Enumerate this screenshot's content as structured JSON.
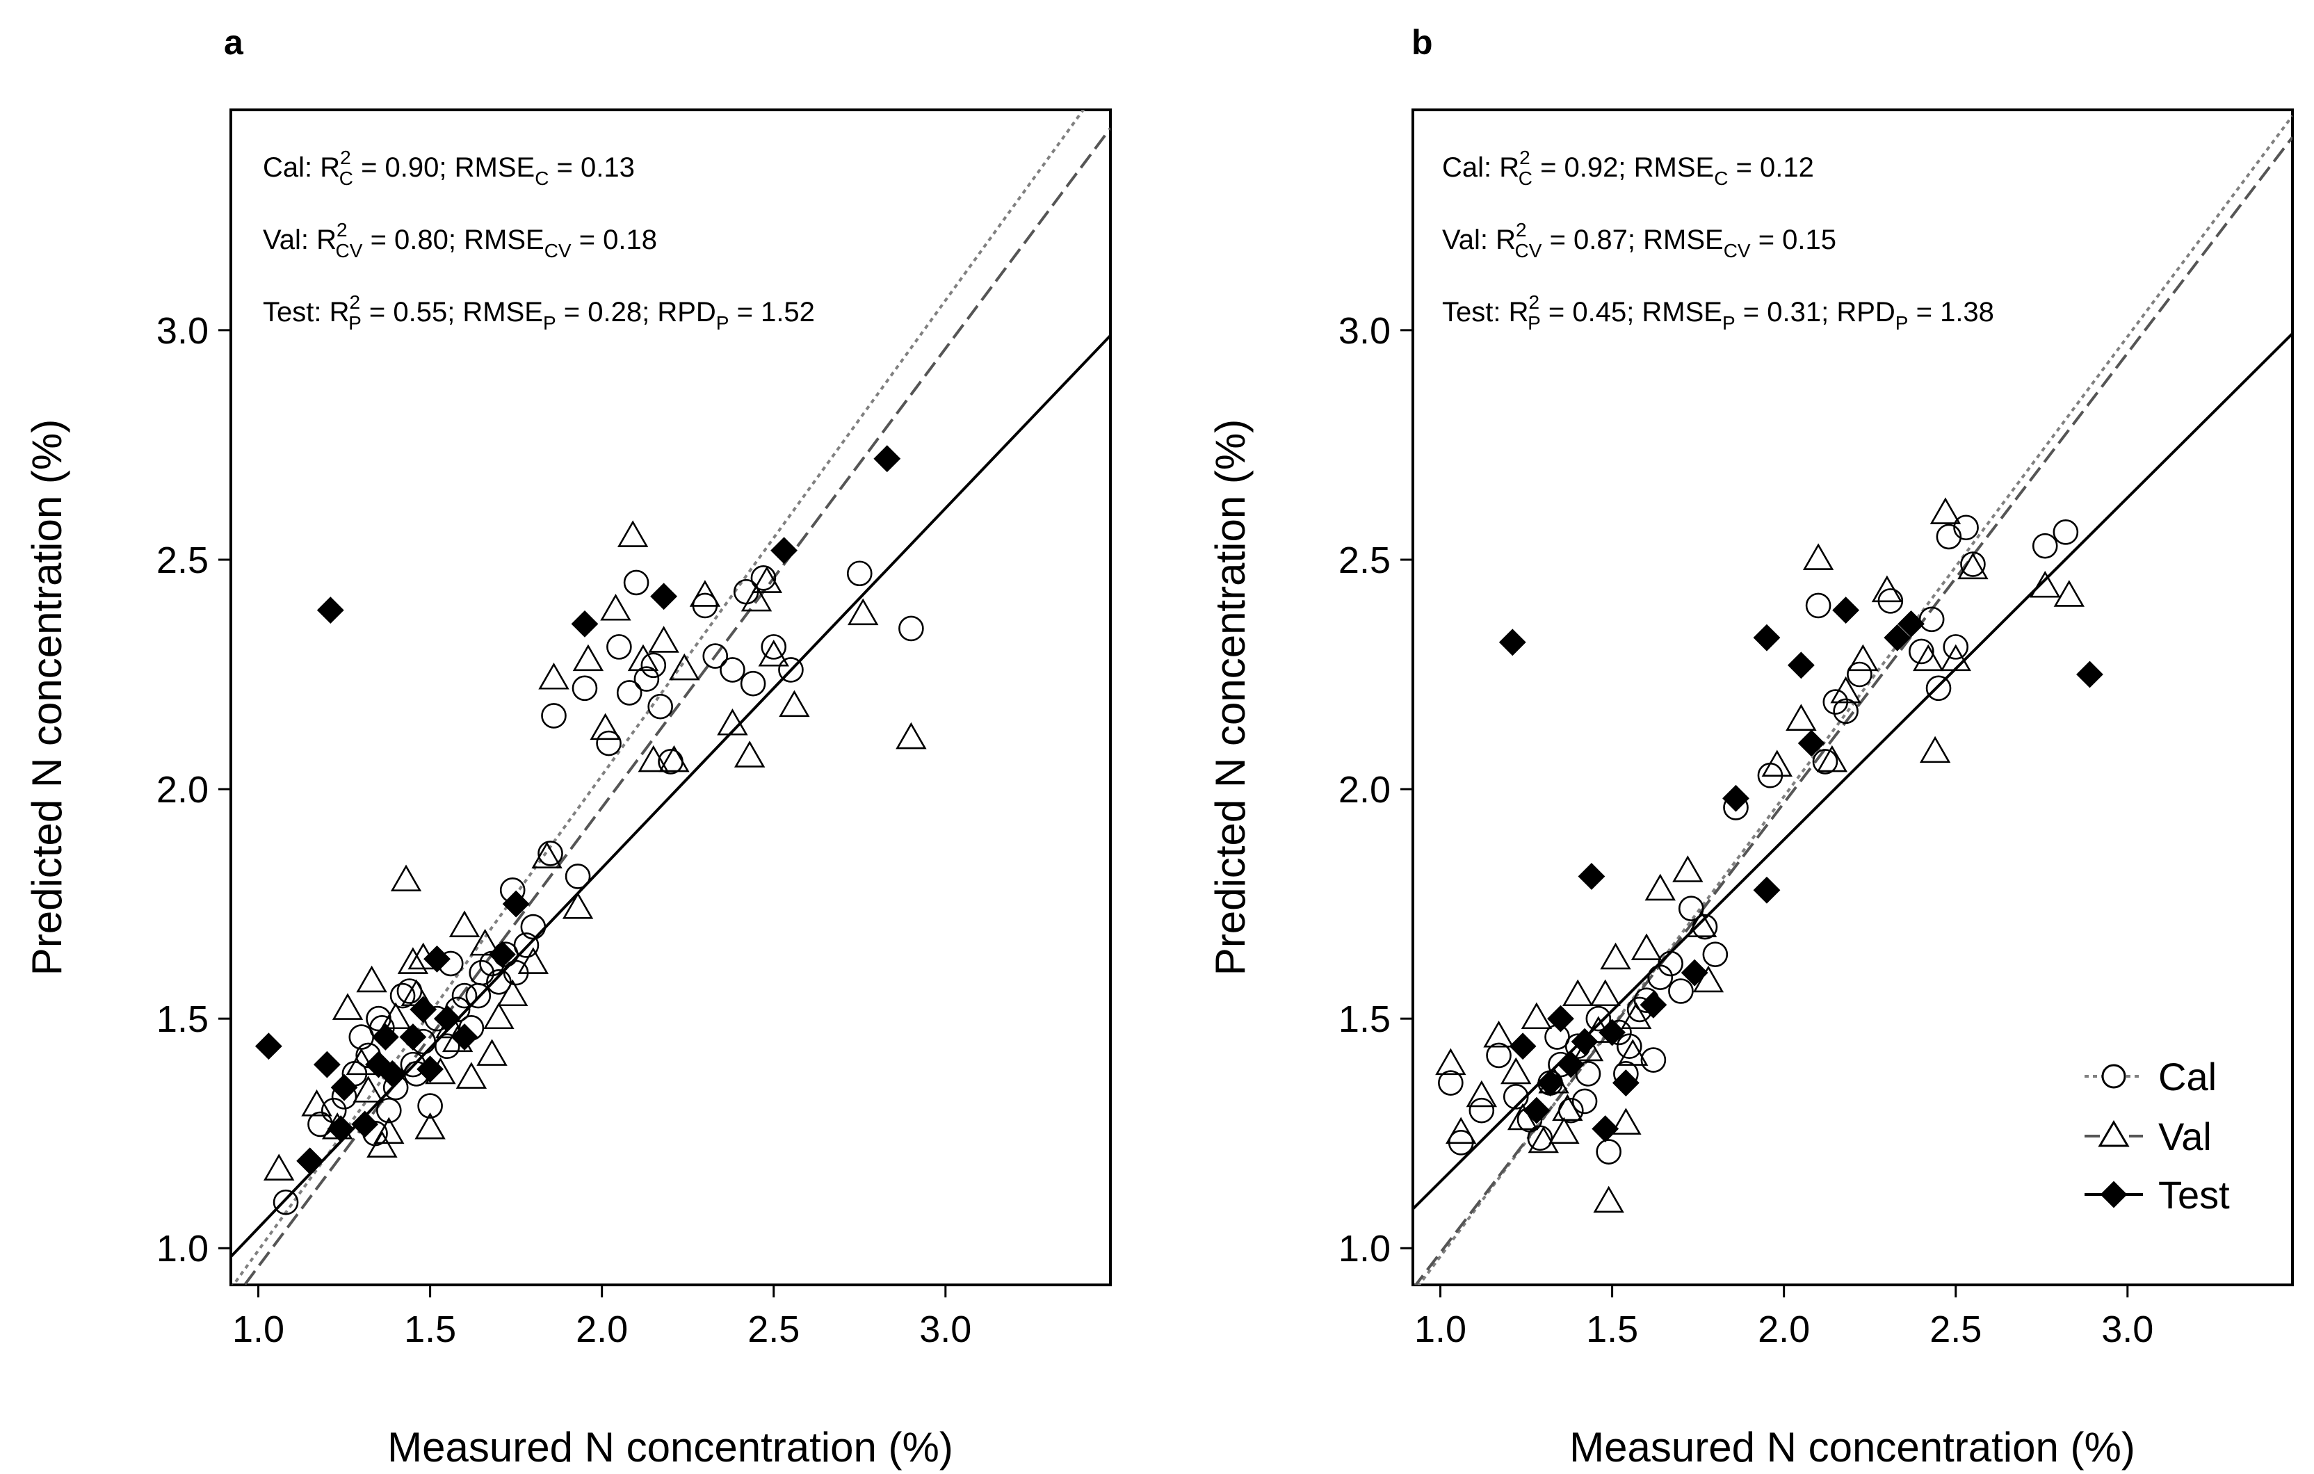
{
  "chart_data": [
    {
      "panel": "a",
      "type": "scatter",
      "xlabel": "Measured N concentration (%)",
      "ylabel": "Predicted N concentration (%)",
      "xlim": [
        0.92,
        3.48
      ],
      "ylim": [
        0.92,
        3.48
      ],
      "xticks": [
        "1.0",
        "1.5",
        "2.0",
        "2.5",
        "3.0"
      ],
      "yticks": [
        "1.0",
        "1.5",
        "2.0",
        "2.5",
        "3.0"
      ],
      "stats": {
        "cal": {
          "prefix": "Cal: R",
          "sup": "2",
          "sub": "C",
          "mid": " = 0.90; RMSE",
          "sub2": "C",
          "rest": " = 0.13"
        },
        "val": {
          "prefix": "Val: R",
          "sup": "2",
          "sub": "CV",
          "mid": " = 0.80; RMSE",
          "sub2": "CV",
          "rest": " = 0.18"
        },
        "test": {
          "prefix": "Test: R",
          "sup": "2",
          "sub": "P",
          "mid": " = 0.55; RMSE",
          "sub2": "P",
          "rest": " = 0.28; RPD",
          "sub3": "P",
          "rest2": " = 1.52"
        }
      },
      "fit_lines": {
        "cal": {
          "slope": 1.035,
          "intercept": -0.04
        },
        "val": {
          "slope": 1.0,
          "intercept": -0.04
        },
        "test": {
          "slope": 0.784,
          "intercept": 0.26
        }
      },
      "series": [
        {
          "name": "Cal",
          "marker": "circle",
          "points": [
            [
              1.08,
              1.1
            ],
            [
              1.18,
              1.27
            ],
            [
              1.22,
              1.3
            ],
            [
              1.25,
              1.33
            ],
            [
              1.28,
              1.38
            ],
            [
              1.3,
              1.46
            ],
            [
              1.32,
              1.42
            ],
            [
              1.35,
              1.5
            ],
            [
              1.38,
              1.3
            ],
            [
              1.4,
              1.35
            ],
            [
              1.42,
              1.55
            ],
            [
              1.45,
              1.4
            ],
            [
              1.48,
              1.45
            ],
            [
              1.5,
              1.31
            ],
            [
              1.52,
              1.5
            ],
            [
              1.55,
              1.44
            ],
            [
              1.58,
              1.52
            ],
            [
              1.6,
              1.55
            ],
            [
              1.62,
              1.48
            ],
            [
              1.65,
              1.6
            ],
            [
              1.68,
              1.62
            ],
            [
              1.7,
              1.58
            ],
            [
              1.72,
              1.64
            ],
            [
              1.75,
              1.6
            ],
            [
              1.78,
              1.66
            ],
            [
              1.8,
              1.7
            ],
            [
              1.74,
              1.78
            ],
            [
              1.85,
              1.86
            ],
            [
              1.93,
              1.81
            ],
            [
              1.86,
              2.16
            ],
            [
              1.95,
              2.22
            ],
            [
              2.02,
              2.1
            ],
            [
              2.05,
              2.31
            ],
            [
              2.08,
              2.21
            ],
            [
              2.1,
              2.45
            ],
            [
              2.13,
              2.24
            ],
            [
              2.15,
              2.27
            ],
            [
              2.17,
              2.18
            ],
            [
              2.2,
              2.06
            ],
            [
              2.3,
              2.4
            ],
            [
              2.33,
              2.29
            ],
            [
              2.38,
              2.26
            ],
            [
              2.42,
              2.43
            ],
            [
              2.44,
              2.23
            ],
            [
              2.47,
              2.46
            ],
            [
              2.5,
              2.31
            ],
            [
              2.55,
              2.26
            ],
            [
              2.75,
              2.47
            ],
            [
              2.9,
              2.35
            ],
            [
              1.36,
              1.48
            ],
            [
              1.44,
              1.56
            ],
            [
              1.46,
              1.38
            ],
            [
              1.56,
              1.62
            ],
            [
              1.64,
              1.55
            ],
            [
              1.34,
              1.25
            ]
          ]
        },
        {
          "name": "Val",
          "marker": "triangle",
          "points": [
            [
              1.06,
              1.17
            ],
            [
              1.17,
              1.31
            ],
            [
              1.23,
              1.26
            ],
            [
              1.26,
              1.52
            ],
            [
              1.3,
              1.4
            ],
            [
              1.33,
              1.58
            ],
            [
              1.36,
              1.22
            ],
            [
              1.38,
              1.25
            ],
            [
              1.4,
              1.5
            ],
            [
              1.43,
              1.8
            ],
            [
              1.45,
              1.62
            ],
            [
              1.48,
              1.63
            ],
            [
              1.5,
              1.26
            ],
            [
              1.53,
              1.38
            ],
            [
              1.56,
              1.48
            ],
            [
              1.6,
              1.7
            ],
            [
              1.62,
              1.37
            ],
            [
              1.66,
              1.66
            ],
            [
              1.7,
              1.5
            ],
            [
              1.74,
              1.55
            ],
            [
              1.8,
              1.62
            ],
            [
              1.84,
              1.85
            ],
            [
              1.86,
              2.24
            ],
            [
              1.93,
              1.74
            ],
            [
              1.96,
              2.28
            ],
            [
              2.01,
              2.13
            ],
            [
              2.04,
              2.39
            ],
            [
              2.09,
              2.55
            ],
            [
              2.12,
              2.28
            ],
            [
              2.15,
              2.06
            ],
            [
              2.18,
              2.32
            ],
            [
              2.21,
              2.06
            ],
            [
              2.24,
              2.26
            ],
            [
              2.3,
              2.42
            ],
            [
              2.38,
              2.14
            ],
            [
              2.43,
              2.07
            ],
            [
              2.45,
              2.41
            ],
            [
              2.48,
              2.45
            ],
            [
              2.5,
              2.29
            ],
            [
              2.56,
              2.18
            ],
            [
              2.76,
              2.38
            ],
            [
              2.9,
              2.11
            ],
            [
              1.32,
              1.34
            ],
            [
              1.46,
              1.55
            ],
            [
              1.58,
              1.45
            ],
            [
              1.68,
              1.42
            ]
          ]
        },
        {
          "name": "Test",
          "marker": "diamond",
          "points": [
            [
              1.03,
              1.44
            ],
            [
              1.15,
              1.19
            ],
            [
              1.2,
              1.4
            ],
            [
              1.21,
              2.39
            ],
            [
              1.24,
              1.26
            ],
            [
              1.25,
              1.35
            ],
            [
              1.31,
              1.27
            ],
            [
              1.35,
              1.4
            ],
            [
              1.37,
              1.46
            ],
            [
              1.39,
              1.38
            ],
            [
              1.45,
              1.46
            ],
            [
              1.48,
              1.52
            ],
            [
              1.5,
              1.39
            ],
            [
              1.52,
              1.63
            ],
            [
              1.55,
              1.5
            ],
            [
              1.6,
              1.46
            ],
            [
              1.71,
              1.64
            ],
            [
              1.75,
              1.75
            ],
            [
              1.95,
              2.36
            ],
            [
              2.18,
              2.42
            ],
            [
              2.53,
              2.52
            ],
            [
              2.83,
              2.72
            ]
          ]
        }
      ]
    },
    {
      "panel": "b",
      "type": "scatter",
      "xlabel": "Measured N concentration (%)",
      "ylabel": "Predicted N concentration (%)",
      "xlim": [
        0.92,
        3.48
      ],
      "ylim": [
        0.92,
        3.48
      ],
      "xticks": [
        "1.0",
        "1.5",
        "2.0",
        "2.5",
        "3.0"
      ],
      "yticks": [
        "1.0",
        "1.5",
        "2.0",
        "2.5",
        "3.0"
      ],
      "stats": {
        "cal": {
          "prefix": "Cal: R",
          "sup": "2",
          "sub": "C",
          "mid": " = 0.92; RMSE",
          "sub2": "C",
          "rest": " = 0.12"
        },
        "val": {
          "prefix": "Val: R",
          "sup": "2",
          "sub": "CV",
          "mid": " = 0.87; RMSE",
          "sub2": "CV",
          "rest": " = 0.15"
        },
        "test": {
          "prefix": "Test: R",
          "sup": "2",
          "sub": "P",
          "mid": " = 0.45; RMSE",
          "sub2": "P",
          "rest": " = 0.31; RPD",
          "sub3": "P",
          "rest2": " = 1.38"
        }
      },
      "fit_lines": {
        "cal": {
          "slope": 1.002,
          "intercept": -0.02
        },
        "val": {
          "slope": 0.98,
          "intercept": 0.01
        },
        "test": {
          "slope": 0.745,
          "intercept": 0.4
        }
      },
      "series": [
        {
          "name": "Cal",
          "marker": "circle",
          "points": [
            [
              1.03,
              1.36
            ],
            [
              1.06,
              1.23
            ],
            [
              1.12,
              1.3
            ],
            [
              1.17,
              1.42
            ],
            [
              1.22,
              1.33
            ],
            [
              1.26,
              1.28
            ],
            [
              1.29,
              1.24
            ],
            [
              1.32,
              1.36
            ],
            [
              1.35,
              1.4
            ],
            [
              1.38,
              1.3
            ],
            [
              1.4,
              1.44
            ],
            [
              1.43,
              1.38
            ],
            [
              1.46,
              1.5
            ],
            [
              1.49,
              1.21
            ],
            [
              1.52,
              1.47
            ],
            [
              1.55,
              1.44
            ],
            [
              1.58,
              1.52
            ],
            [
              1.6,
              1.54
            ],
            [
              1.62,
              1.41
            ],
            [
              1.64,
              1.59
            ],
            [
              1.67,
              1.62
            ],
            [
              1.7,
              1.56
            ],
            [
              1.73,
              1.74
            ],
            [
              1.77,
              1.7
            ],
            [
              1.8,
              1.64
            ],
            [
              1.86,
              1.96
            ],
            [
              1.96,
              2.03
            ],
            [
              2.1,
              2.4
            ],
            [
              2.12,
              2.06
            ],
            [
              2.15,
              2.19
            ],
            [
              2.18,
              2.17
            ],
            [
              2.22,
              2.25
            ],
            [
              2.31,
              2.41
            ],
            [
              2.4,
              2.3
            ],
            [
              2.43,
              2.37
            ],
            [
              2.45,
              2.22
            ],
            [
              2.48,
              2.55
            ],
            [
              2.5,
              2.31
            ],
            [
              2.53,
              2.57
            ],
            [
              2.55,
              2.49
            ],
            [
              2.76,
              2.53
            ],
            [
              2.82,
              2.56
            ],
            [
              1.34,
              1.46
            ],
            [
              1.42,
              1.32
            ],
            [
              1.54,
              1.38
            ]
          ]
        },
        {
          "name": "Val",
          "marker": "triangle",
          "points": [
            [
              1.03,
              1.4
            ],
            [
              1.06,
              1.25
            ],
            [
              1.12,
              1.33
            ],
            [
              1.17,
              1.46
            ],
            [
              1.22,
              1.38
            ],
            [
              1.24,
              1.28
            ],
            [
              1.28,
              1.5
            ],
            [
              1.3,
              1.23
            ],
            [
              1.33,
              1.36
            ],
            [
              1.36,
              1.25
            ],
            [
              1.4,
              1.55
            ],
            [
              1.43,
              1.43
            ],
            [
              1.46,
              1.47
            ],
            [
              1.49,
              1.1
            ],
            [
              1.51,
              1.63
            ],
            [
              1.54,
              1.27
            ],
            [
              1.57,
              1.5
            ],
            [
              1.6,
              1.65
            ],
            [
              1.64,
              1.78
            ],
            [
              1.72,
              1.82
            ],
            [
              1.76,
              1.7
            ],
            [
              1.78,
              1.58
            ],
            [
              1.98,
              2.05
            ],
            [
              2.05,
              2.15
            ],
            [
              2.1,
              2.5
            ],
            [
              2.14,
              2.06
            ],
            [
              2.18,
              2.21
            ],
            [
              2.23,
              2.28
            ],
            [
              2.3,
              2.43
            ],
            [
              2.42,
              2.28
            ],
            [
              2.44,
              2.08
            ],
            [
              2.47,
              2.6
            ],
            [
              2.5,
              2.28
            ],
            [
              2.55,
              2.48
            ],
            [
              2.76,
              2.44
            ],
            [
              2.83,
              2.42
            ],
            [
              1.37,
              1.3
            ],
            [
              1.48,
              1.55
            ],
            [
              1.56,
              1.42
            ]
          ]
        },
        {
          "name": "Test",
          "marker": "diamond",
          "points": [
            [
              1.21,
              2.32
            ],
            [
              1.24,
              1.44
            ],
            [
              1.28,
              1.3
            ],
            [
              1.32,
              1.36
            ],
            [
              1.35,
              1.5
            ],
            [
              1.38,
              1.4
            ],
            [
              1.42,
              1.45
            ],
            [
              1.44,
              1.81
            ],
            [
              1.48,
              1.26
            ],
            [
              1.5,
              1.47
            ],
            [
              1.54,
              1.36
            ],
            [
              1.62,
              1.53
            ],
            [
              1.74,
              1.6
            ],
            [
              1.86,
              1.98
            ],
            [
              1.95,
              1.78
            ],
            [
              1.95,
              2.33
            ],
            [
              2.05,
              2.27
            ],
            [
              2.08,
              2.1
            ],
            [
              2.18,
              2.39
            ],
            [
              2.33,
              2.33
            ],
            [
              2.37,
              2.36
            ],
            [
              2.89,
              2.25
            ]
          ]
        }
      ]
    }
  ],
  "legend": {
    "items": [
      {
        "label": "Cal",
        "marker": "circle",
        "dash": "short"
      },
      {
        "label": "Val",
        "marker": "triangle",
        "dash": "long"
      },
      {
        "label": "Test",
        "marker": "diamond",
        "dash": "solid"
      }
    ]
  },
  "colors": {
    "axis": "#000000",
    "cal_line": "#808080",
    "val_line": "#555555",
    "test_line": "#000000",
    "marker_fill_open": "#ffffff",
    "marker_fill_test": "#000000"
  }
}
